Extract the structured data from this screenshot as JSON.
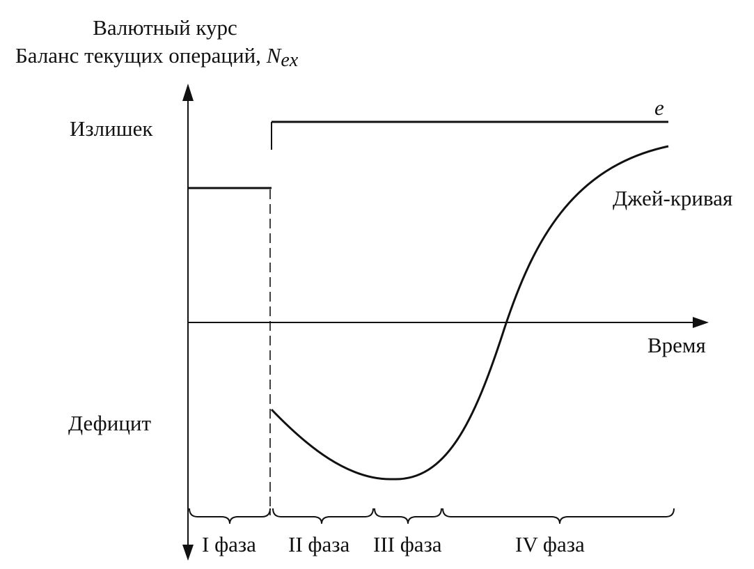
{
  "diagram": {
    "y_axis_label_line1": "Валютный курс",
    "y_axis_label_line2_text": "Баланс текущих операций, ",
    "y_axis_label_symbol": "N",
    "y_axis_label_subscript": "ex",
    "surplus_label": "Излишек",
    "deficit_label": "Дефицит",
    "x_axis_label": "Время",
    "exchange_rate_label": "e",
    "j_curve_label": "Джей-кривая",
    "phases": [
      "I фаза",
      "II фаза",
      "III фаза",
      "IV фаза"
    ]
  },
  "colors": {
    "ink": "#111111",
    "background": "#ffffff"
  }
}
